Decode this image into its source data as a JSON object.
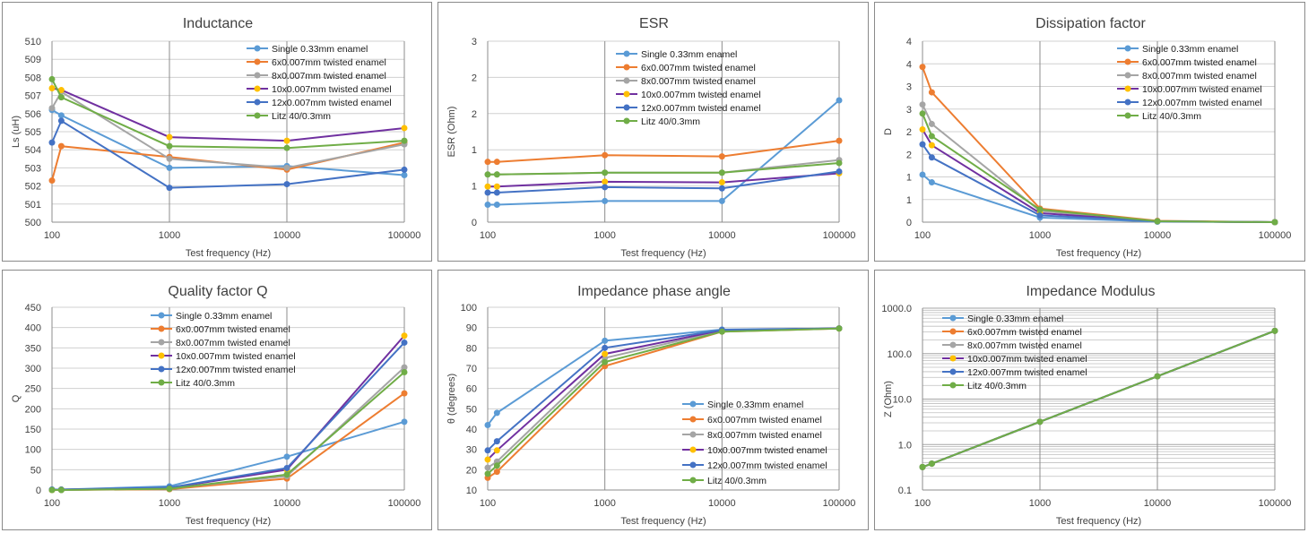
{
  "legend_series": [
    "Single 0.33mm enamel",
    "6x0.007mm twisted enamel",
    "8x0.007mm twisted enamel",
    "10x0.007mm twisted enamel",
    "12x0.007mm twisted enamel",
    "Litz 40/0.3mm"
  ],
  "colors": [
    "#5b9bd5",
    "#ed7d31",
    "#a5a5a5",
    "#7030a0",
    "#4472c4",
    "#70ad47"
  ],
  "marker_colors": [
    "#5b9bd5",
    "#ed7d31",
    "#a5a5a5",
    "#ffc000",
    "#4472c4",
    "#70ad47"
  ],
  "chart_data": [
    {
      "type": "line",
      "title": "Inductance",
      "xlabel": "Test frequency (Hz)",
      "ylabel": "Ls (uH)",
      "xscale": "log",
      "x": [
        100,
        120,
        1000,
        10000,
        100000
      ],
      "xticks": [
        "100",
        "1000",
        "10000",
        "100000"
      ],
      "ylim": [
        500,
        510
      ],
      "yticks": [
        "500",
        "501",
        "502",
        "503",
        "504",
        "505",
        "506",
        "507",
        "508",
        "509",
        "510"
      ],
      "legend_position": "top-right",
      "series": [
        {
          "name": "Single 0.33mm enamel",
          "values": [
            506.2,
            505.9,
            503.0,
            503.1,
            502.6
          ]
        },
        {
          "name": "6x0.007mm twisted enamel",
          "values": [
            502.3,
            504.2,
            503.6,
            502.9,
            504.4
          ]
        },
        {
          "name": "8x0.007mm twisted enamel",
          "values": [
            506.3,
            507.2,
            503.5,
            503.0,
            504.3
          ]
        },
        {
          "name": "10x0.007mm twisted enamel",
          "values": [
            507.4,
            507.3,
            504.7,
            504.5,
            505.2
          ]
        },
        {
          "name": "12x0.007mm twisted enamel",
          "values": [
            504.4,
            505.6,
            501.9,
            502.1,
            502.9
          ]
        },
        {
          "name": "Litz 40/0.3mm",
          "values": [
            507.9,
            506.9,
            504.2,
            504.1,
            504.5
          ]
        }
      ]
    },
    {
      "type": "line",
      "title": "ESR",
      "xlabel": "Test frequency (Hz)",
      "ylabel": "ESR (Ohm)",
      "xscale": "log",
      "x": [
        100,
        120,
        1000,
        10000,
        100000
      ],
      "xticks": [
        "100",
        "1000",
        "10000",
        "100000"
      ],
      "ylim": [
        0,
        3
      ],
      "yticks": [
        "0",
        "1",
        "1",
        "2",
        "2",
        "3"
      ],
      "legend_position": "top-right",
      "series": [
        {
          "name": "Single 0.33mm enamel",
          "values": [
            0.29,
            0.29,
            0.35,
            0.35,
            2.02
          ]
        },
        {
          "name": "6x0.007mm twisted enamel",
          "values": [
            1.0,
            1.0,
            1.11,
            1.09,
            1.35
          ]
        },
        {
          "name": "8x0.007mm twisted enamel",
          "values": [
            0.79,
            0.79,
            0.82,
            0.82,
            1.03
          ]
        },
        {
          "name": "10x0.007mm twisted enamel",
          "values": [
            0.59,
            0.59,
            0.67,
            0.66,
            0.81
          ]
        },
        {
          "name": "12x0.007mm twisted enamel",
          "values": [
            0.49,
            0.49,
            0.58,
            0.56,
            0.84
          ]
        },
        {
          "name": "Litz 40/0.3mm",
          "values": [
            0.79,
            0.79,
            0.82,
            0.82,
            0.98
          ]
        }
      ]
    },
    {
      "type": "line",
      "title": "Dissipation factor",
      "xlabel": "Test frequency (Hz)",
      "ylabel": "D",
      "xscale": "log",
      "x": [
        100,
        120,
        1000,
        10000,
        100000
      ],
      "xticks": [
        "100",
        "1000",
        "10000",
        "100000"
      ],
      "ylim": [
        0,
        4
      ],
      "yticks": [
        "0",
        "1",
        "1",
        "2",
        "2",
        "3",
        "3",
        "4",
        "4"
      ],
      "legend_position": "top-right",
      "series": [
        {
          "name": "Single 0.33mm enamel",
          "values": [
            1.05,
            0.88,
            0.1,
            0.01,
            0.0
          ]
        },
        {
          "name": "6x0.007mm twisted enamel",
          "values": [
            3.43,
            2.87,
            0.3,
            0.03,
            0.0
          ]
        },
        {
          "name": "8x0.007mm twisted enamel",
          "values": [
            2.6,
            2.17,
            0.25,
            0.02,
            0.0
          ]
        },
        {
          "name": "10x0.007mm twisted enamel",
          "values": [
            2.05,
            1.7,
            0.2,
            0.02,
            0.0
          ]
        },
        {
          "name": "12x0.007mm twisted enamel",
          "values": [
            1.72,
            1.43,
            0.15,
            0.02,
            0.0
          ]
        },
        {
          "name": "Litz 40/0.3mm",
          "values": [
            2.4,
            1.9,
            0.28,
            0.02,
            0.0
          ]
        }
      ]
    },
    {
      "type": "line",
      "title": "Quality factor Q",
      "xlabel": "Test frequency (Hz)",
      "ylabel": "Q",
      "xscale": "log",
      "x": [
        100,
        120,
        1000,
        10000,
        100000
      ],
      "xticks": [
        "100",
        "1000",
        "10000",
        "100000"
      ],
      "ylim": [
        0,
        450
      ],
      "yticks": [
        "0",
        "50",
        "100",
        "150",
        "200",
        "250",
        "300",
        "350",
        "400",
        "450"
      ],
      "legend_position": "top-right",
      "series": [
        {
          "name": "Single 0.33mm enamel",
          "values": [
            1,
            1,
            9,
            82,
            168
          ]
        },
        {
          "name": "6x0.007mm twisted enamel",
          "values": [
            0,
            0,
            2,
            28,
            238
          ]
        },
        {
          "name": "8x0.007mm twisted enamel",
          "values": [
            0,
            0,
            4,
            34,
            302
          ]
        },
        {
          "name": "10x0.007mm twisted enamel",
          "values": [
            0,
            1,
            5,
            50,
            380
          ]
        },
        {
          "name": "12x0.007mm twisted enamel",
          "values": [
            1,
            1,
            6,
            54,
            363
          ]
        },
        {
          "name": "Litz 40/0.3mm",
          "values": [
            0,
            0,
            3,
            38,
            290
          ]
        }
      ]
    },
    {
      "type": "line",
      "title": "Impedance phase angle",
      "xlabel": "Test frequency (Hz)",
      "ylabel": "θ (degrees)",
      "xscale": "log",
      "x": [
        100,
        120,
        1000,
        10000,
        100000
      ],
      "xticks": [
        "100",
        "1000",
        "10000",
        "100000"
      ],
      "ylim": [
        10,
        100
      ],
      "yticks": [
        "10",
        "20",
        "30",
        "40",
        "50",
        "60",
        "70",
        "80",
        "90",
        "100"
      ],
      "legend_position": "bottom-right",
      "series": [
        {
          "name": "Single 0.33mm enamel",
          "values": [
            42,
            48,
            83.5,
            89,
            89.6
          ]
        },
        {
          "name": "6x0.007mm twisted enamel",
          "values": [
            16,
            19,
            71,
            88,
            89.5
          ]
        },
        {
          "name": "8x0.007mm twisted enamel",
          "values": [
            21,
            24,
            75,
            88.5,
            89.6
          ]
        },
        {
          "name": "10x0.007mm twisted enamel",
          "values": [
            25,
            29.5,
            77,
            88.7,
            89.6
          ]
        },
        {
          "name": "12x0.007mm twisted enamel",
          "values": [
            29.5,
            34,
            80,
            88.8,
            89.6
          ]
        },
        {
          "name": "Litz 40/0.3mm",
          "values": [
            18,
            22,
            73,
            88,
            89.5
          ]
        }
      ]
    },
    {
      "type": "line",
      "title": "Impedance Modulus",
      "xlabel": "Test frequency (Hz)",
      "ylabel": "Z (Ohm)",
      "xscale": "log",
      "yscale": "log",
      "x": [
        100,
        120,
        1000,
        10000,
        100000
      ],
      "xticks": [
        "100",
        "1000",
        "10000",
        "100000"
      ],
      "ylim": [
        0.1,
        1000
      ],
      "yticks": [
        "0.1",
        "1.0",
        "10.0",
        "100.0",
        "1000.0"
      ],
      "legend_position": "top-left",
      "series": [
        {
          "name": "Single 0.33mm enamel",
          "values": [
            0.32,
            0.38,
            3.17,
            31.7,
            317
          ]
        },
        {
          "name": "6x0.007mm twisted enamel",
          "values": [
            0.32,
            0.38,
            3.17,
            31.7,
            317
          ]
        },
        {
          "name": "8x0.007mm twisted enamel",
          "values": [
            0.32,
            0.38,
            3.17,
            31.7,
            317
          ]
        },
        {
          "name": "10x0.007mm twisted enamel",
          "values": [
            0.32,
            0.38,
            3.17,
            31.7,
            317
          ]
        },
        {
          "name": "12x0.007mm twisted enamel",
          "values": [
            0.32,
            0.38,
            3.17,
            31.7,
            317
          ]
        },
        {
          "name": "Litz 40/0.3mm",
          "values": [
            0.32,
            0.38,
            3.17,
            31.7,
            317
          ]
        }
      ]
    }
  ]
}
